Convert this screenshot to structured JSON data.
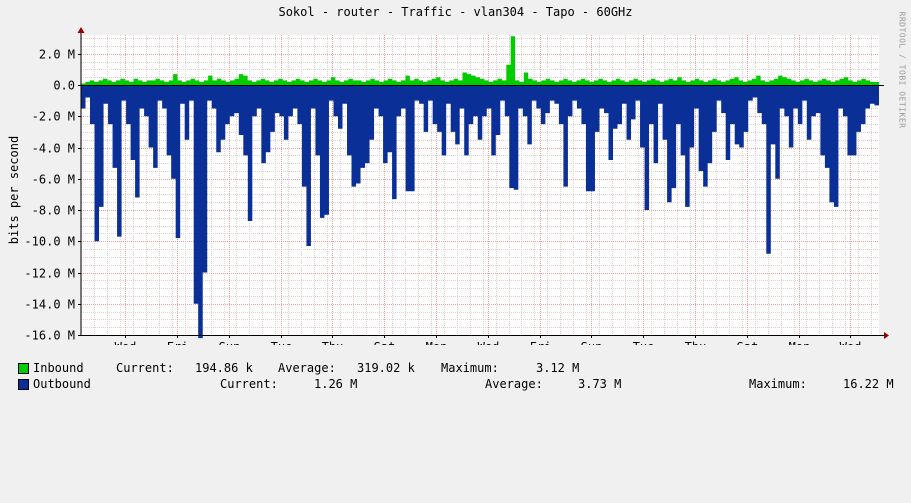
{
  "title": "Sokol - router - Traffic - vlan304 - Tapo - 60GHz",
  "watermark": "RRDTOOL / TOBI OETIKER",
  "colors": {
    "inbound": "#00cc00",
    "outbound": "#0a2f96",
    "background": "#ffffff",
    "frame": "#f0f0f0"
  },
  "chart_data": {
    "type": "area",
    "title": "Sokol - router - Traffic - vlan304 - Tapo - 60GHz",
    "ylabel": "bits per second",
    "xlabel": "",
    "ylim": [
      -16000000,
      3200000
    ],
    "y_ticks": [
      2000000,
      0,
      -2000000,
      -4000000,
      -6000000,
      -8000000,
      -10000000,
      -12000000,
      -14000000,
      -16000000
    ],
    "y_tick_labels": [
      "2.0 M",
      "0.0",
      "-2.0 M",
      "-4.0 M",
      "-6.0 M",
      "-8.0 M",
      "-10.0 M",
      "-12.0 M",
      "-14.0 M",
      "-16.0 M"
    ],
    "x_range_days": [
      0,
      15.4
    ],
    "x_ticks": [
      {
        "label": "Wed",
        "day": 0.85
      },
      {
        "label": "Fri",
        "day": 1.85
      },
      {
        "label": "Sun",
        "day": 2.85
      },
      {
        "label": "Tue",
        "day": 3.85
      },
      {
        "label": "Thu",
        "day": 4.85
      },
      {
        "label": "Sat",
        "day": 5.85
      },
      {
        "label": "Mon",
        "day": 6.85
      },
      {
        "label": "Wed",
        "day": 7.85
      },
      {
        "label": "Fri",
        "day": 8.85
      },
      {
        "label": "Sun",
        "day": 9.85
      },
      {
        "label": "Tue",
        "day": 10.85
      },
      {
        "label": "Thu",
        "day": 11.85
      },
      {
        "label": "Sat",
        "day": 12.85
      },
      {
        "label": "Mon",
        "day": 13.85
      },
      {
        "label": "Wed",
        "day": 14.85
      }
    ],
    "grid": true,
    "series": [
      {
        "name": "Inbound",
        "values": [
          0.1,
          0.2,
          0.3,
          0.2,
          0.3,
          0.4,
          0.3,
          0.2,
          0.3,
          0.4,
          0.3,
          0.2,
          0.4,
          0.3,
          0.2,
          0.3,
          0.3,
          0.4,
          0.3,
          0.2,
          0.3,
          0.7,
          0.3,
          0.2,
          0.3,
          0.4,
          0.3,
          0.2,
          0.3,
          0.6,
          0.3,
          0.4,
          0.3,
          0.2,
          0.3,
          0.4,
          0.7,
          0.6,
          0.3,
          0.2,
          0.3,
          0.4,
          0.3,
          0.2,
          0.3,
          0.4,
          0.3,
          0.2,
          0.3,
          0.4,
          0.3,
          0.2,
          0.3,
          0.4,
          0.3,
          0.2,
          0.3,
          0.5,
          0.3,
          0.2,
          0.3,
          0.4,
          0.3,
          0.3,
          0.2,
          0.3,
          0.4,
          0.3,
          0.2,
          0.3,
          0.4,
          0.3,
          0.2,
          0.3,
          0.6,
          0.3,
          0.4,
          0.3,
          0.2,
          0.3,
          0.4,
          0.5,
          0.3,
          0.2,
          0.3,
          0.4,
          0.3,
          0.8,
          0.7,
          0.6,
          0.5,
          0.4,
          0.3,
          0.2,
          0.3,
          0.4,
          0.3,
          1.3,
          3.12,
          0.3,
          0.2,
          0.8,
          0.4,
          0.3,
          0.2,
          0.3,
          0.4,
          0.3,
          0.2,
          0.3,
          0.4,
          0.3,
          0.2,
          0.3,
          0.4,
          0.3,
          0.2,
          0.3,
          0.4,
          0.3,
          0.2,
          0.3,
          0.4,
          0.3,
          0.2,
          0.3,
          0.4,
          0.3,
          0.2,
          0.3,
          0.4,
          0.3,
          0.2,
          0.3,
          0.4,
          0.3,
          0.5,
          0.3,
          0.2,
          0.3,
          0.4,
          0.3,
          0.2,
          0.3,
          0.4,
          0.3,
          0.2,
          0.3,
          0.4,
          0.5,
          0.3,
          0.2,
          0.3,
          0.4,
          0.6,
          0.3,
          0.2,
          0.3,
          0.4,
          0.6,
          0.5,
          0.4,
          0.3,
          0.2,
          0.3,
          0.4,
          0.3,
          0.2,
          0.3,
          0.4,
          0.3,
          0.2,
          0.3,
          0.4,
          0.5,
          0.3,
          0.2,
          0.3,
          0.4,
          0.3,
          0.2,
          0.19
        ]
      },
      {
        "name": "Outbound",
        "values": [
          -1.5,
          -0.8,
          -2.5,
          -10.0,
          -7.8,
          -1.2,
          -2.5,
          -5.3,
          -9.7,
          -1.0,
          -2.5,
          -4.8,
          -7.2,
          -1.5,
          -2.0,
          -4.0,
          -5.3,
          -1.0,
          -1.5,
          -4.5,
          -6.0,
          -9.8,
          -1.2,
          -3.5,
          -1.0,
          -14.0,
          -16.2,
          -12.0,
          -1.0,
          -1.5,
          -4.3,
          -3.5,
          -2.5,
          -2.0,
          -1.8,
          -3.2,
          -4.5,
          -8.7,
          -2.0,
          -1.5,
          -5.0,
          -4.3,
          -3.0,
          -1.8,
          -2.0,
          -3.5,
          -2.0,
          -1.5,
          -2.5,
          -6.5,
          -10.3,
          -1.5,
          -4.5,
          -8.5,
          -8.3,
          -1.0,
          -2.0,
          -2.8,
          -1.2,
          -4.5,
          -6.5,
          -6.3,
          -5.3,
          -5.0,
          -3.5,
          -1.5,
          -2.0,
          -5.0,
          -4.3,
          -7.3,
          -2.0,
          -1.5,
          -6.8,
          -6.8,
          -1.0,
          -1.2,
          -3.0,
          -1.0,
          -2.5,
          -3.0,
          -4.5,
          -1.2,
          -3.0,
          -3.8,
          -1.5,
          -4.5,
          -2.5,
          -2.0,
          -3.5,
          -2.0,
          -1.5,
          -4.5,
          -3.2,
          -1.0,
          -2.0,
          -6.6,
          -6.7,
          -1.5,
          -2.0,
          -3.8,
          -1.0,
          -1.5,
          -2.5,
          -1.8,
          -1.0,
          -1.2,
          -2.5,
          -6.5,
          -2.0,
          -1.0,
          -1.5,
          -2.5,
          -6.8,
          -6.8,
          -3.0,
          -1.5,
          -1.8,
          -4.8,
          -2.8,
          -2.5,
          -1.2,
          -3.5,
          -2.2,
          -1.0,
          -4.0,
          -8.0,
          -2.5,
          -5.0,
          -1.2,
          -3.5,
          -7.5,
          -6.6,
          -2.5,
          -4.5,
          -7.8,
          -4.0,
          -1.5,
          -5.5,
          -6.5,
          -5.0,
          -3.0,
          -1.0,
          -1.8,
          -4.8,
          -2.5,
          -3.8,
          -4.0,
          -3.0,
          -1.0,
          -0.8,
          -1.8,
          -2.5,
          -10.8,
          -3.8,
          -6.0,
          -1.5,
          -2.0,
          -4.0,
          -1.5,
          -2.5,
          -1.0,
          -3.5,
          -2.0,
          -1.8,
          -4.5,
          -5.3,
          -7.5,
          -7.8,
          -1.5,
          -2.0,
          -4.5,
          -4.5,
          -3.0,
          -2.5,
          -1.5,
          -1.2,
          -1.3
        ]
      }
    ]
  },
  "legend": {
    "inbound": {
      "name": "Inbound",
      "current_label": "Current:",
      "current_value": "194.86 k",
      "average_label": "Average:",
      "average_value": "319.02 k",
      "maximum_label": "Maximum:",
      "maximum_value": "3.12 M"
    },
    "outbound": {
      "name": "Outbound",
      "current_label": "Current:",
      "current_value": "1.26 M",
      "average_label": "Average:",
      "average_value": "3.73 M",
      "maximum_label": "Maximum:",
      "maximum_value": "16.22 M"
    }
  }
}
